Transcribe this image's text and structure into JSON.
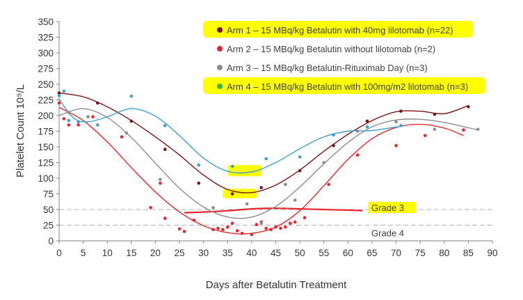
{
  "chart_data": {
    "type": "scatter",
    "xlabel": "Days after Betalutin Treatment",
    "ylabel": "Platelet Count 10⁹/L",
    "xlim": [
      0,
      90
    ],
    "ylim": [
      0,
      350
    ],
    "x_ticks": [
      "0",
      "5",
      "10",
      "15",
      "20",
      "25",
      "30",
      "35",
      "40",
      "45",
      "50",
      "55",
      "60",
      "65",
      "70",
      "75",
      "80",
      "85",
      "90"
    ],
    "y_ticks": [
      "0",
      "25",
      "50",
      "75",
      "100",
      "125",
      "150",
      "175",
      "200",
      "225",
      "250",
      "275",
      "300",
      "325",
      "350"
    ],
    "legend_position": "top-right",
    "grid": false,
    "reference_lines": [
      {
        "label": "Grade 3",
        "y": 50,
        "color": "#b3b3b3",
        "highlight": "#ffff00"
      },
      {
        "label": "Grade 4",
        "y": 25,
        "color": "#b3b3b3"
      }
    ],
    "highlights": [
      {
        "x": [
          35,
          42
        ],
        "y": [
          103,
          121
        ],
        "color": "#ffff00"
      },
      {
        "x": [
          34,
          41
        ],
        "y": [
          68,
          83
        ],
        "color": "#ffff00"
      }
    ],
    "series": [
      {
        "name": "Arm 1 – 15 MBq/kg Betalutin with 40mg lilotomab (n=22)",
        "color": "#7b1414",
        "legend_highlight": true,
        "points": [
          [
            0,
            236
          ],
          [
            8,
            220
          ],
          [
            15,
            191
          ],
          [
            22,
            146
          ],
          [
            29,
            92
          ],
          [
            36,
            75
          ],
          [
            42,
            85
          ],
          [
            50,
            112
          ],
          [
            57,
            152
          ],
          [
            64,
            191
          ],
          [
            71,
            207
          ],
          [
            78,
            202
          ],
          [
            85,
            214
          ]
        ],
        "trend": [
          [
            0,
            236
          ],
          [
            5,
            230
          ],
          [
            10,
            214
          ],
          [
            15,
            192
          ],
          [
            20,
            166
          ],
          [
            25,
            137
          ],
          [
            30,
            105
          ],
          [
            35,
            82
          ],
          [
            40,
            77
          ],
          [
            45,
            89
          ],
          [
            50,
            113
          ],
          [
            55,
            143
          ],
          [
            60,
            170
          ],
          [
            65,
            192
          ],
          [
            70,
            206
          ],
          [
            75,
            207
          ],
          [
            80,
            203
          ],
          [
            85,
            216
          ]
        ]
      },
      {
        "name": "Arm 2 – 15 MBq/kg Betalutin without lilotomab (n=2)",
        "color": "#e8252b",
        "legend_highlight": false,
        "points": [
          [
            0,
            220
          ],
          [
            1,
            195
          ],
          [
            2,
            185
          ],
          [
            4,
            185
          ],
          [
            7,
            198
          ],
          [
            13,
            166
          ],
          [
            19,
            53
          ],
          [
            21,
            92
          ],
          [
            22,
            36
          ],
          [
            25,
            19
          ],
          [
            26,
            15
          ],
          [
            28,
            33
          ],
          [
            32,
            18
          ],
          [
            33,
            20
          ],
          [
            34,
            18
          ],
          [
            35,
            22
          ],
          [
            36,
            28
          ],
          [
            37,
            16
          ],
          [
            38,
            12
          ],
          [
            40,
            10
          ],
          [
            41,
            26
          ],
          [
            42,
            30
          ],
          [
            43,
            20
          ],
          [
            44,
            18
          ],
          [
            45,
            22
          ],
          [
            46,
            20
          ],
          [
            47,
            22
          ],
          [
            48,
            28
          ],
          [
            49,
            30
          ],
          [
            51,
            37
          ],
          [
            56,
            90
          ],
          [
            62,
            137
          ],
          [
            70,
            152
          ],
          [
            76,
            168
          ],
          [
            84,
            177
          ]
        ],
        "trend": [
          [
            0,
            213
          ],
          [
            5,
            192
          ],
          [
            10,
            158
          ],
          [
            15,
            117
          ],
          [
            20,
            78
          ],
          [
            25,
            46
          ],
          [
            30,
            24
          ],
          [
            35,
            13
          ],
          [
            40,
            12
          ],
          [
            45,
            22
          ],
          [
            50,
            48
          ],
          [
            55,
            88
          ],
          [
            60,
            130
          ],
          [
            65,
            163
          ],
          [
            70,
            181
          ],
          [
            75,
            186
          ],
          [
            80,
            180
          ],
          [
            84,
            168
          ]
        ],
        "grade_trend": [
          [
            26,
            45
          ],
          [
            30,
            46
          ],
          [
            35,
            48
          ],
          [
            40,
            51
          ],
          [
            45,
            52
          ],
          [
            50,
            51
          ],
          [
            55,
            50
          ],
          [
            60,
            49
          ],
          [
            63,
            48
          ]
        ]
      },
      {
        "name": "Arm 3 – 15 MBq/kg Betalutin-Rituximab Day (n=3)",
        "color": "#8c8c8c",
        "legend_highlight": false,
        "points": [
          [
            2,
            205
          ],
          [
            6,
            198
          ],
          [
            14,
            172
          ],
          [
            21,
            98
          ],
          [
            32,
            53
          ],
          [
            39,
            59
          ],
          [
            42,
            28
          ],
          [
            47,
            90
          ],
          [
            49,
            65
          ],
          [
            55,
            125
          ],
          [
            62,
            175
          ],
          [
            70,
            190
          ],
          [
            78,
            178
          ],
          [
            87,
            178
          ]
        ],
        "trend": [
          [
            0,
            200
          ],
          [
            5,
            211
          ],
          [
            10,
            197
          ],
          [
            15,
            165
          ],
          [
            20,
            124
          ],
          [
            25,
            84
          ],
          [
            30,
            54
          ],
          [
            35,
            38
          ],
          [
            40,
            38
          ],
          [
            45,
            55
          ],
          [
            50,
            86
          ],
          [
            55,
            123
          ],
          [
            60,
            157
          ],
          [
            65,
            182
          ],
          [
            70,
            193
          ],
          [
            75,
            194
          ],
          [
            80,
            189
          ],
          [
            87,
            177
          ]
        ]
      },
      {
        "name": "Arm 4 – 15 MBq/kg Betalutin with 100mg/m2 lilotomab (n=3)",
        "color": "#3aa0d0",
        "marker_color": "#3cb34a",
        "legend_highlight": true,
        "points": [
          [
            0,
            232
          ],
          [
            1,
            239
          ],
          [
            2,
            192
          ],
          [
            4,
            190
          ],
          [
            8,
            185
          ],
          [
            15,
            231
          ],
          [
            22,
            184
          ],
          [
            29,
            121
          ],
          [
            36,
            119
          ],
          [
            43,
            131
          ],
          [
            50,
            134
          ],
          [
            57,
            169
          ],
          [
            64,
            182
          ],
          [
            71,
            184
          ]
        ],
        "trend": [
          [
            0,
            226
          ],
          [
            3,
            196
          ],
          [
            6,
            190
          ],
          [
            10,
            198
          ],
          [
            15,
            211
          ],
          [
            20,
            199
          ],
          [
            25,
            168
          ],
          [
            30,
            132
          ],
          [
            35,
            111
          ],
          [
            40,
            110
          ],
          [
            45,
            125
          ],
          [
            50,
            147
          ],
          [
            55,
            166
          ],
          [
            60,
            175
          ],
          [
            65,
            176
          ],
          [
            71,
            183
          ]
        ]
      }
    ]
  }
}
